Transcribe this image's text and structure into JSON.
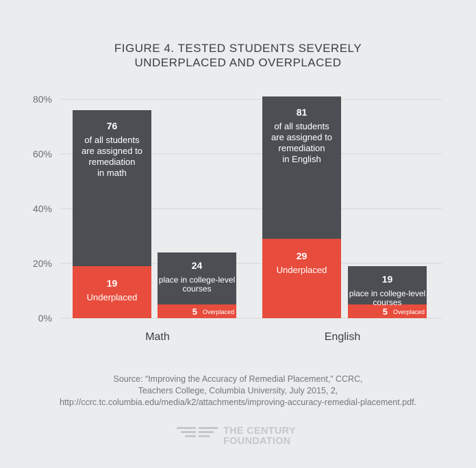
{
  "title": {
    "line1": "FIGURE 4. TESTED STUDENTS SEVERELY",
    "line2": "UNDERPLACED AND OVERPLACED"
  },
  "chart_data": {
    "type": "bar",
    "stacked": true,
    "ylim": [
      0,
      80
    ],
    "yticks": [
      "0%",
      "20%",
      "40%",
      "60%",
      "80%"
    ],
    "ytick_values": [
      0,
      20,
      40,
      60,
      80
    ],
    "grid": true,
    "categories": [
      "Math",
      "English"
    ],
    "bars": [
      {
        "group": "Math",
        "total": 76,
        "total_label_lines": [
          "76",
          "of all students",
          "are assigned to",
          "remediation",
          "in math"
        ],
        "sub": 19,
        "sub_label_lines": [
          "19",
          "Underplaced"
        ]
      },
      {
        "group": "Math",
        "total": 24,
        "total_label_lines": [
          "24",
          "place in college-level",
          "courses"
        ],
        "sub": 5,
        "sub_label_lines": [
          "5",
          "Overplaced"
        ]
      },
      {
        "group": "English",
        "total": 81,
        "total_label_lines": [
          "81",
          "of all students",
          "are assigned to",
          "remediation",
          "in English"
        ],
        "sub": 29,
        "sub_label_lines": [
          "29",
          "Underplaced"
        ]
      },
      {
        "group": "English",
        "total": 19,
        "total_label_lines": [
          "19",
          "place in college-level",
          "courses"
        ],
        "sub": 5,
        "sub_label_lines": [
          "5",
          "Overplaced"
        ]
      }
    ],
    "colors": {
      "dark": "#4c4e54",
      "red": "#e74c3c",
      "grid": "#d4d6d8",
      "text": "#3b3d42",
      "axis": "#6b6e73"
    }
  },
  "source": {
    "line1": "Source: “Improving the Accuracy of Remedial Placement,” CCRC,",
    "line2": "Teachers College, Columbia University, July 2015, 2,",
    "line3": "http://ccrc.tc.columbia.edu/media/k2/attachments/improving-accuracy-remedial-placement.pdf."
  },
  "logo": {
    "line1": "THE CENTURY",
    "line2": "FOUNDATION",
    "icon": "century-foundation-logo-icon"
  }
}
